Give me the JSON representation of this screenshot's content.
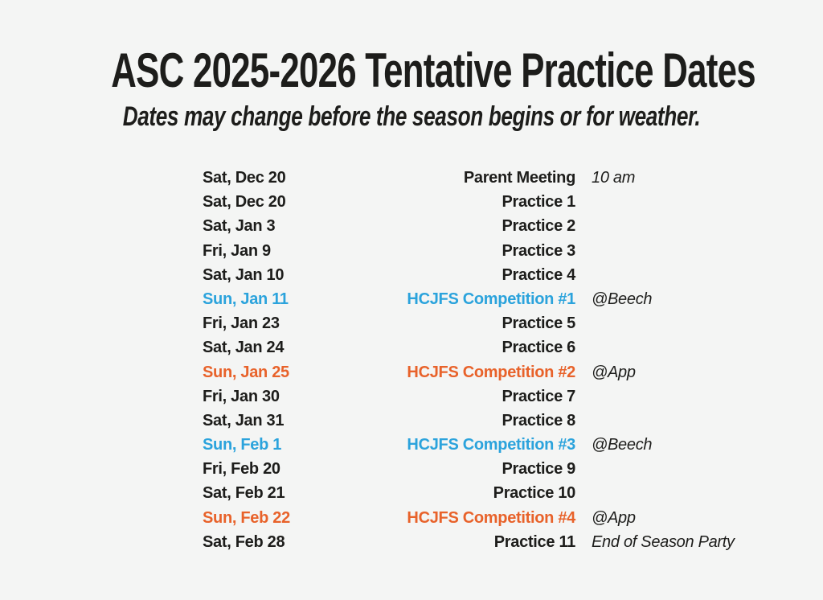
{
  "page": {
    "title": "ASC 2025-2026 Tentative Practice Dates",
    "subtitle": "Dates may change before the season begins or for weather."
  },
  "colors": {
    "background": "#f4f5f4",
    "text": "#1d1d1b",
    "blue": "#2ba3dc",
    "orange": "#e8622a"
  },
  "schedule": {
    "rows": [
      {
        "date": "Sat, Dec 20",
        "event": "Parent Meeting",
        "note": "10 am",
        "color": "default"
      },
      {
        "date": "Sat, Dec 20",
        "event": "Practice 1",
        "note": "",
        "color": "default"
      },
      {
        "date": "Sat, Jan 3",
        "event": "Practice 2",
        "note": "",
        "color": "default"
      },
      {
        "date": "Fri, Jan 9",
        "event": "Practice 3",
        "note": "",
        "color": "default"
      },
      {
        "date": "Sat, Jan 10",
        "event": "Practice 4",
        "note": "",
        "color": "default"
      },
      {
        "date": "Sun, Jan 11",
        "event": "HCJFS Competition #1",
        "note": "@Beech",
        "color": "blue"
      },
      {
        "date": "Fri, Jan 23",
        "event": "Practice 5",
        "note": "",
        "color": "default"
      },
      {
        "date": "Sat, Jan 24",
        "event": "Practice 6",
        "note": "",
        "color": "default"
      },
      {
        "date": "Sun, Jan 25",
        "event": "HCJFS Competition #2",
        "note": "@App",
        "color": "orange"
      },
      {
        "date": "Fri, Jan 30",
        "event": "Practice 7",
        "note": "",
        "color": "default"
      },
      {
        "date": "Sat, Jan 31",
        "event": "Practice 8",
        "note": "",
        "color": "default"
      },
      {
        "date": "Sun, Feb 1",
        "event": "HCJFS Competition #3",
        "note": "@Beech",
        "color": "blue"
      },
      {
        "date": "Fri, Feb 20",
        "event": "Practice 9",
        "note": "",
        "color": "default"
      },
      {
        "date": "Sat, Feb 21",
        "event": "Practice 10",
        "note": "",
        "color": "default"
      },
      {
        "date": "Sun, Feb 22",
        "event": "HCJFS Competition #4",
        "note": "@App",
        "color": "orange"
      },
      {
        "date": "Sat, Feb 28",
        "event": "Practice 11",
        "note": "End of Season Party",
        "color": "default"
      }
    ]
  }
}
